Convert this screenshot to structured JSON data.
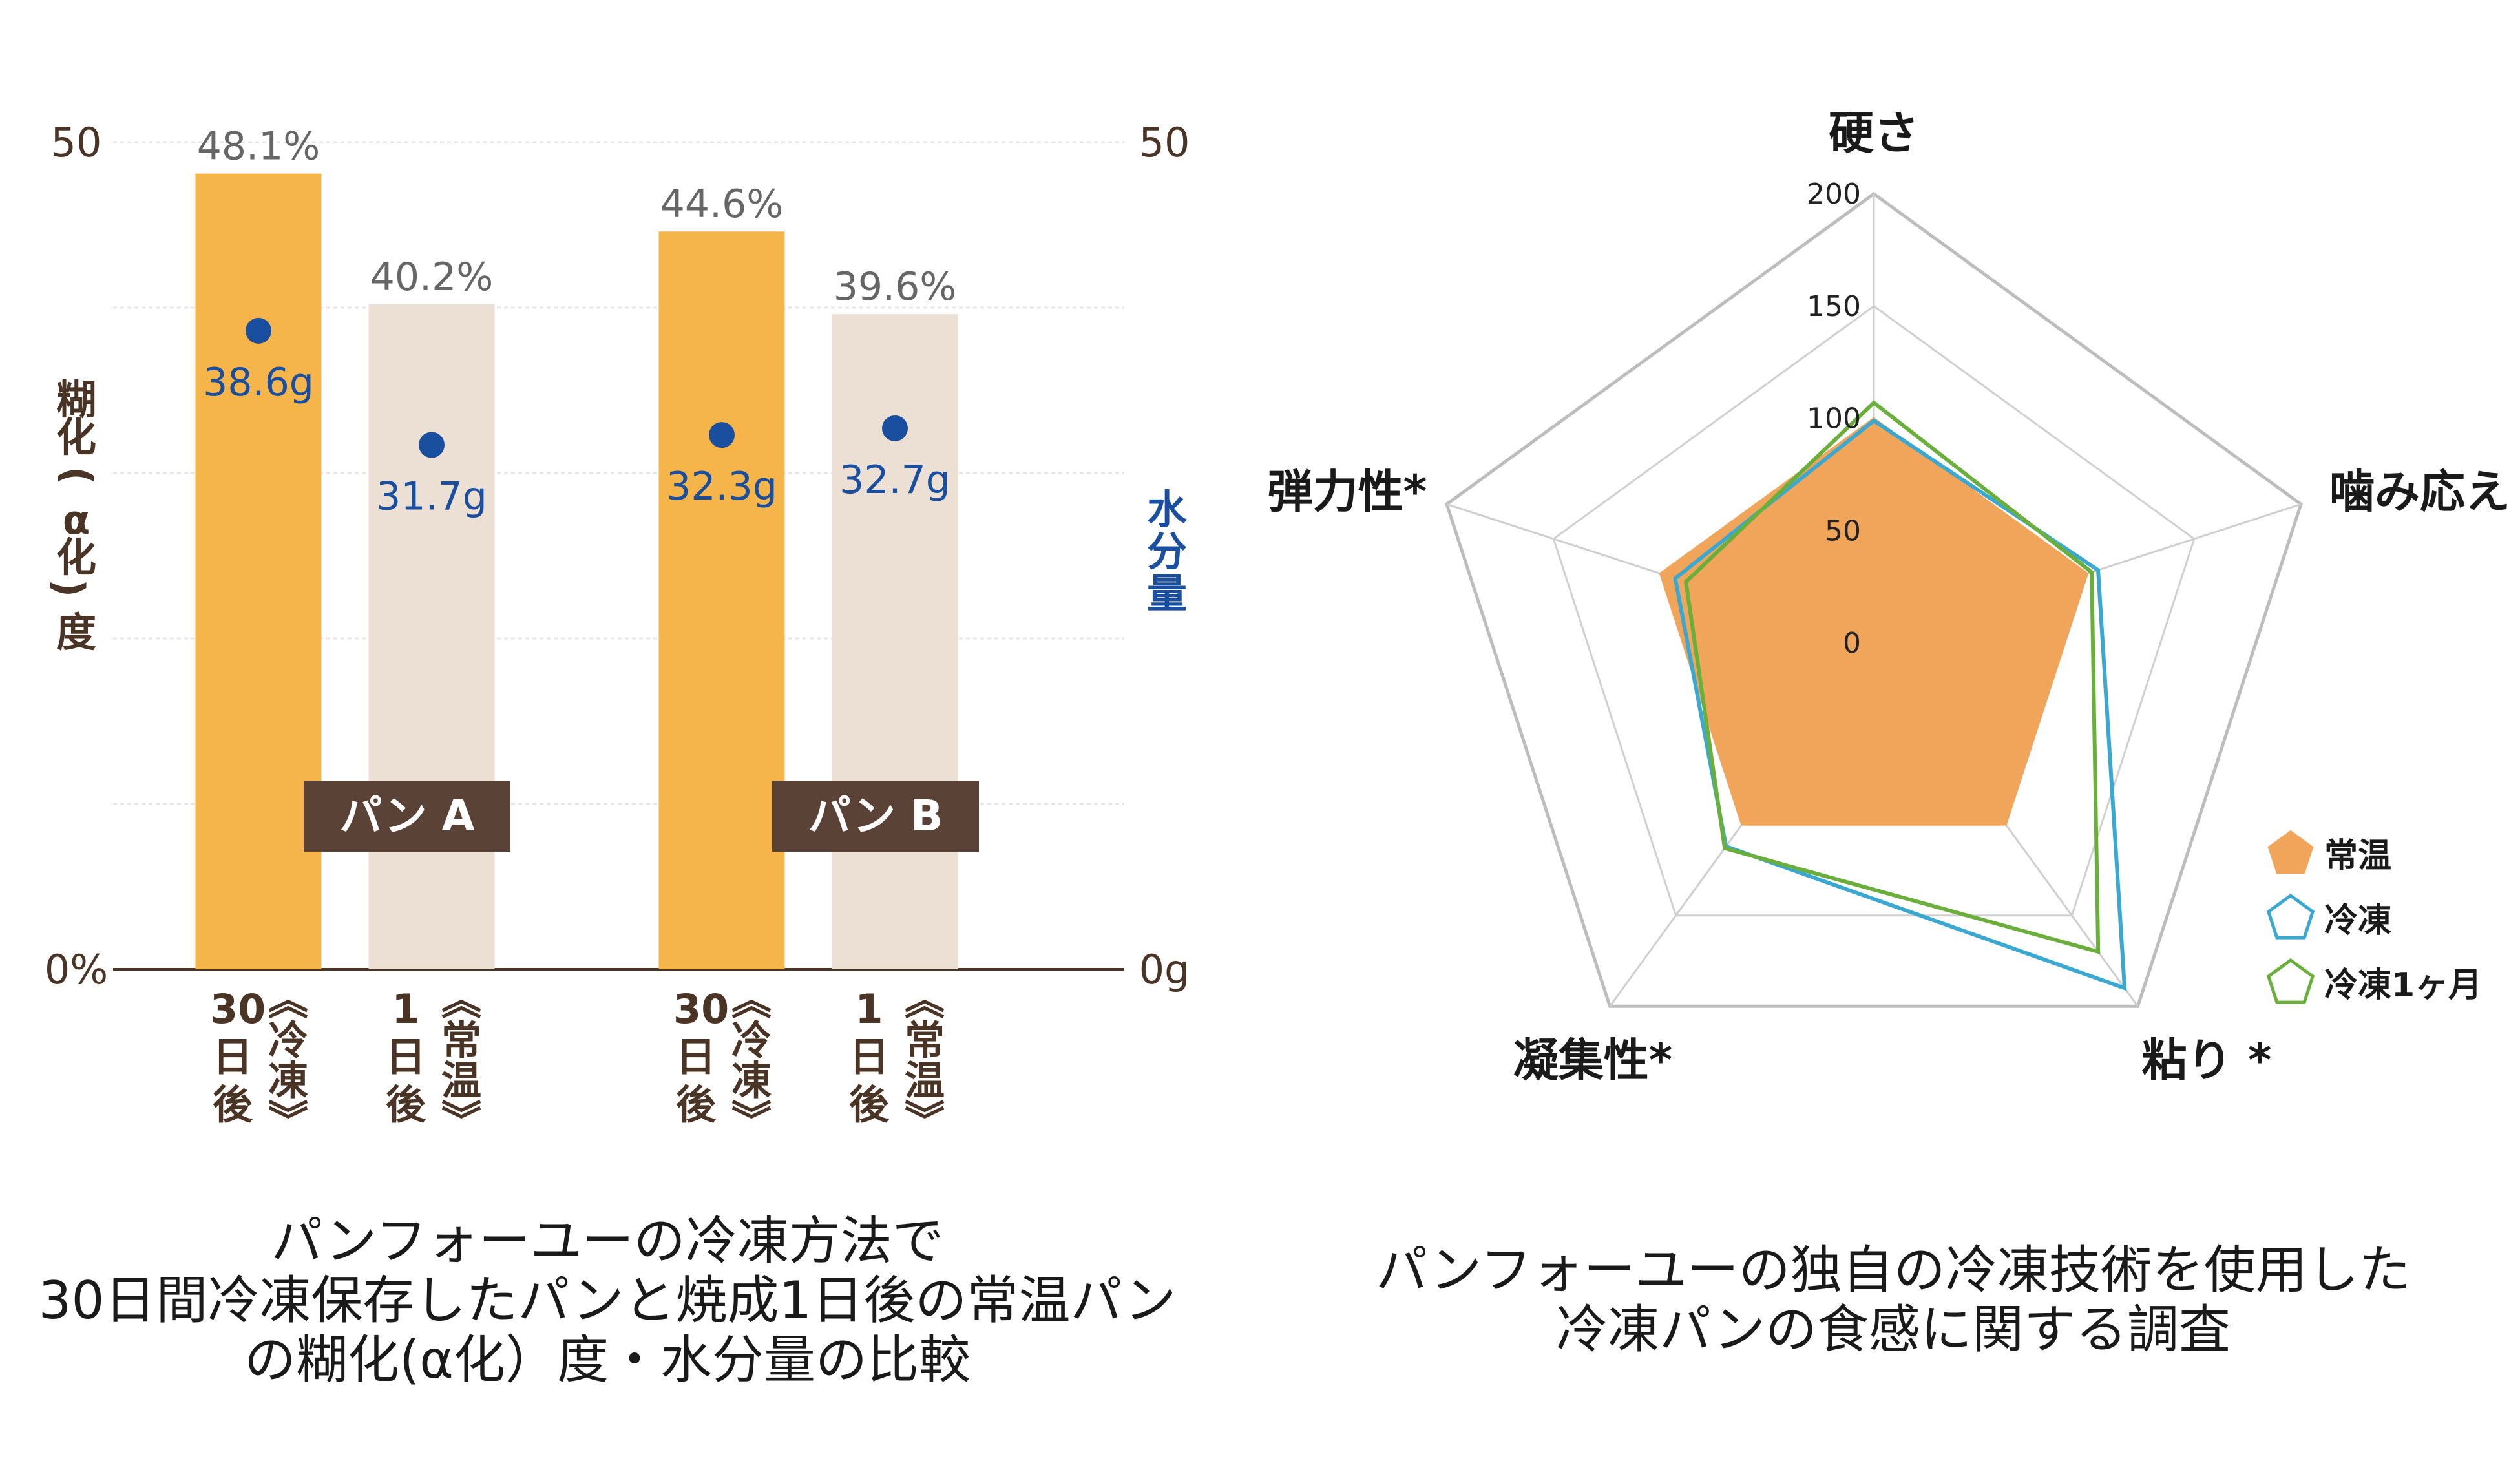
{
  "chart_data": [
    {
      "type": "bar",
      "left_axis": {
        "label": [
          "糊",
          "化",
          "(",
          "α",
          "化",
          ")",
          "度"
        ],
        "ticks": [
          "0%",
          "50"
        ],
        "ylim": [
          0,
          50
        ]
      },
      "right_axis": {
        "label": [
          "水",
          "分",
          "量"
        ],
        "ticks": [
          "0g",
          "50"
        ],
        "ylim": [
          0,
          50
        ]
      },
      "groups": [
        {
          "name": "パン A",
          "bars": [
            {
              "category": [
                "30日後",
                "《冷凍》"
              ],
              "value": 48.1,
              "value_label": "48.1%",
              "water": 38.6,
              "water_label": "38.6g",
              "color": "#f5b54a"
            },
            {
              "category": [
                "1日後",
                "《常温》"
              ],
              "value": 40.2,
              "value_label": "40.2%",
              "water": 31.7,
              "water_label": "31.7g",
              "color": "#ecdfd3"
            }
          ]
        },
        {
          "name": "パン B",
          "bars": [
            {
              "category": [
                "30日後",
                "《冷凍》"
              ],
              "value": 44.6,
              "value_label": "44.6%",
              "water": 32.3,
              "water_label": "32.3g",
              "color": "#f5b54a"
            },
            {
              "category": [
                "1日後",
                "《常温》"
              ],
              "value": 39.6,
              "value_label": "39.6%",
              "water": 32.7,
              "water_label": "32.7g",
              "color": "#ecdfd3"
            }
          ]
        }
      ],
      "caption": [
        "パンフォーユーの冷凍方法で",
        "30日間冷凍保存したパンと焼成1日後の常温パン",
        "の糊化(α化）度・水分量の比較"
      ],
      "colors": {
        "axis_text": "#4a3426",
        "water_text": "#1a4fa0",
        "water_dot": "#1a4fa0",
        "value_text": "#666666",
        "group_box": "#5a4236"
      }
    },
    {
      "type": "radar",
      "axes": [
        "硬さ",
        "噛み応え",
        "粘り *",
        "凝集性*",
        "弾力性*"
      ],
      "rlim": [
        0,
        200
      ],
      "ticks": [
        "0",
        "50",
        "100",
        "150",
        "200"
      ],
      "series": [
        {
          "name": "常温",
          "values": [
            100,
            100,
            100,
            100,
            100
          ],
          "color": "#f0a55a",
          "style": "filled"
        },
        {
          "name": "冷凍",
          "values": [
            99,
            105,
            190,
            112,
            93
          ],
          "color": "#3aa8d0",
          "style": "outline"
        },
        {
          "name": "冷凍1ヶ月",
          "values": [
            107,
            102,
            170,
            113,
            88
          ],
          "color": "#6aaf3c",
          "style": "outline"
        }
      ],
      "legend_position": "right",
      "caption": [
        "パンフォーユーの独自の冷凍技術を使用した",
        "冷凍パンの食感に関する調査"
      ]
    }
  ]
}
